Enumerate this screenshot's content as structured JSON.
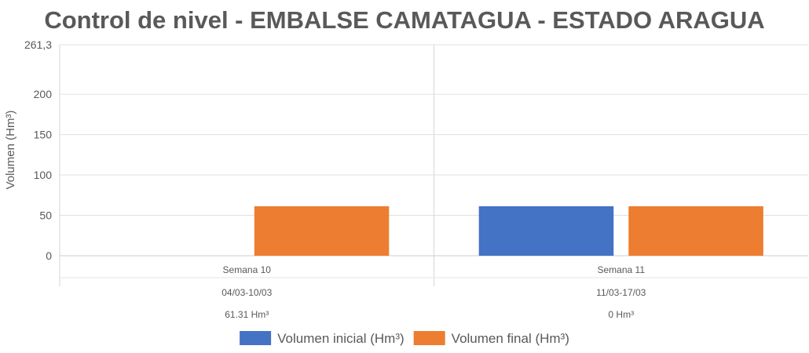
{
  "chart_data": {
    "type": "bar",
    "title": "Control de nivel - EMBALSE CAMATAGUA - ESTADO ARAGUA",
    "ylabel": "Volumen (Hm³)",
    "ylim": [
      0,
      261.3
    ],
    "y_ticks": [
      {
        "value": 0,
        "label": "0"
      },
      {
        "value": 50,
        "label": "50"
      },
      {
        "value": 100,
        "label": "100"
      },
      {
        "value": 150,
        "label": "150"
      },
      {
        "value": 200,
        "label": "200"
      },
      {
        "value": 261.3,
        "label": "261,3"
      }
    ],
    "categories": [
      "Semana 10",
      "Semana 11"
    ],
    "category_dates": [
      "04/03-10/03",
      "11/03-17/03"
    ],
    "category_notes": [
      "61.31 Hm³",
      "0 Hm³"
    ],
    "series": [
      {
        "name": "Volumen inicial (Hm³)",
        "color": "#4472c4",
        "values": [
          0,
          61.31
        ]
      },
      {
        "name": "Volumen final (Hm³)",
        "color": "#ed7d31",
        "values": [
          61.31,
          61.31
        ]
      }
    ],
    "grid": true,
    "legend_position": "bottom-center"
  }
}
